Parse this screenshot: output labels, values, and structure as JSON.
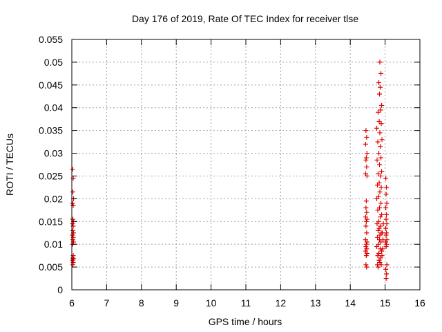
{
  "chart_data": {
    "type": "scatter",
    "title": "Day 176 of 2019, Rate Of TEC Index for receiver tlse",
    "xlabel": "GPS time / hours",
    "ylabel": "ROTI / TECUs",
    "xlim": [
      6,
      16
    ],
    "ylim": [
      0,
      0.055
    ],
    "x_ticks": [
      6,
      7,
      8,
      9,
      10,
      11,
      12,
      13,
      14,
      15,
      16
    ],
    "x_tick_labels": [
      "6",
      "7",
      "8",
      "9",
      "10",
      "11",
      "12",
      "13",
      "14",
      "15",
      "16"
    ],
    "y_ticks": [
      0,
      0.005,
      0.01,
      0.015,
      0.02,
      0.025,
      0.03,
      0.035,
      0.04,
      0.045,
      0.05,
      0.055
    ],
    "y_tick_labels": [
      "0",
      "0.005",
      "0.01",
      "0.015",
      "0.02",
      "0.025",
      "0.03",
      "0.035",
      "0.04",
      "0.045",
      "0.05",
      "0.055"
    ],
    "grid": true,
    "marker": "+",
    "series": [
      {
        "name": "ROTI",
        "color": "#dd0000",
        "points": [
          [
            6.02,
            0.0265
          ],
          [
            6.04,
            0.0245
          ],
          [
            6.03,
            0.0215
          ],
          [
            6.05,
            0.02
          ],
          [
            6.02,
            0.019
          ],
          [
            6.04,
            0.0185
          ],
          [
            6.03,
            0.0155
          ],
          [
            6.05,
            0.015
          ],
          [
            6.02,
            0.0145
          ],
          [
            6.04,
            0.014
          ],
          [
            6.03,
            0.013
          ],
          [
            6.05,
            0.0125
          ],
          [
            6.02,
            0.012
          ],
          [
            6.04,
            0.0115
          ],
          [
            6.03,
            0.011
          ],
          [
            6.05,
            0.0105
          ],
          [
            6.02,
            0.01
          ],
          [
            6.04,
            0.0075
          ],
          [
            6.03,
            0.007
          ],
          [
            6.05,
            0.0068
          ],
          [
            6.02,
            0.0065
          ],
          [
            6.04,
            0.006
          ],
          [
            6.03,
            0.0055
          ],
          [
            14.45,
            0.035
          ],
          [
            14.47,
            0.0335
          ],
          [
            14.44,
            0.032
          ],
          [
            14.48,
            0.03
          ],
          [
            14.46,
            0.029
          ],
          [
            14.45,
            0.0285
          ],
          [
            14.47,
            0.027
          ],
          [
            14.44,
            0.0255
          ],
          [
            14.48,
            0.025
          ],
          [
            14.46,
            0.0195
          ],
          [
            14.45,
            0.018
          ],
          [
            14.47,
            0.017
          ],
          [
            14.44,
            0.016
          ],
          [
            14.48,
            0.0155
          ],
          [
            14.46,
            0.015
          ],
          [
            14.45,
            0.014
          ],
          [
            14.47,
            0.0125
          ],
          [
            14.44,
            0.011
          ],
          [
            14.48,
            0.0105
          ],
          [
            14.46,
            0.01
          ],
          [
            14.45,
            0.0095
          ],
          [
            14.47,
            0.009
          ],
          [
            14.44,
            0.0085
          ],
          [
            14.48,
            0.008
          ],
          [
            14.46,
            0.0075
          ],
          [
            14.45,
            0.0055
          ],
          [
            14.47,
            0.005
          ],
          [
            14.85,
            0.05
          ],
          [
            14.88,
            0.0475
          ],
          [
            14.82,
            0.0455
          ],
          [
            14.86,
            0.0445
          ],
          [
            14.84,
            0.043
          ],
          [
            14.9,
            0.0405
          ],
          [
            14.87,
            0.0395
          ],
          [
            14.8,
            0.039
          ],
          [
            14.83,
            0.037
          ],
          [
            14.89,
            0.0365
          ],
          [
            14.76,
            0.0355
          ],
          [
            14.85,
            0.0345
          ],
          [
            14.91,
            0.033
          ],
          [
            14.79,
            0.0325
          ],
          [
            14.86,
            0.0315
          ],
          [
            14.82,
            0.03
          ],
          [
            14.88,
            0.029
          ],
          [
            14.77,
            0.0285
          ],
          [
            14.84,
            0.0275
          ],
          [
            14.9,
            0.026
          ],
          [
            14.8,
            0.0255
          ],
          [
            14.87,
            0.025
          ],
          [
            14.83,
            0.0235
          ],
          [
            14.78,
            0.023
          ],
          [
            14.89,
            0.0225
          ],
          [
            14.85,
            0.0215
          ],
          [
            14.81,
            0.0205
          ],
          [
            14.76,
            0.02
          ],
          [
            14.88,
            0.019
          ],
          [
            14.84,
            0.018
          ],
          [
            14.79,
            0.0175
          ],
          [
            14.9,
            0.0165
          ],
          [
            14.86,
            0.016
          ],
          [
            14.82,
            0.015
          ],
          [
            14.77,
            0.0145
          ],
          [
            14.87,
            0.014
          ],
          [
            14.83,
            0.0135
          ],
          [
            14.8,
            0.013
          ],
          [
            14.89,
            0.0125
          ],
          [
            14.85,
            0.012
          ],
          [
            14.78,
            0.0115
          ],
          [
            14.84,
            0.011
          ],
          [
            14.88,
            0.0105
          ],
          [
            14.81,
            0.01
          ],
          [
            14.76,
            0.0095
          ],
          [
            14.86,
            0.009
          ],
          [
            14.9,
            0.0085
          ],
          [
            14.82,
            0.008
          ],
          [
            14.79,
            0.0075
          ],
          [
            14.87,
            0.007
          ],
          [
            14.83,
            0.0065
          ],
          [
            14.85,
            0.006
          ],
          [
            14.78,
            0.0055
          ],
          [
            14.89,
            0.0055
          ],
          [
            14.8,
            0.005
          ],
          [
            14.92,
            0.0125
          ],
          [
            14.94,
            0.011
          ],
          [
            14.93,
            0.009
          ],
          [
            14.95,
            0.0145
          ],
          [
            14.91,
            0.0075
          ],
          [
            15.02,
            0.0245
          ],
          [
            15.04,
            0.0225
          ],
          [
            15.03,
            0.021
          ],
          [
            15.05,
            0.019
          ],
          [
            15.02,
            0.018
          ],
          [
            15.04,
            0.0165
          ],
          [
            15.03,
            0.0155
          ],
          [
            15.05,
            0.0145
          ],
          [
            15.02,
            0.0135
          ],
          [
            15.04,
            0.0125
          ],
          [
            15.03,
            0.012
          ],
          [
            15.05,
            0.011
          ],
          [
            15.02,
            0.0105
          ],
          [
            15.04,
            0.01
          ],
          [
            15.03,
            0.0095
          ],
          [
            15.05,
            0.0055
          ],
          [
            15.02,
            0.0045
          ],
          [
            15.04,
            0.0035
          ],
          [
            15.03,
            0.0025
          ]
        ]
      }
    ]
  }
}
